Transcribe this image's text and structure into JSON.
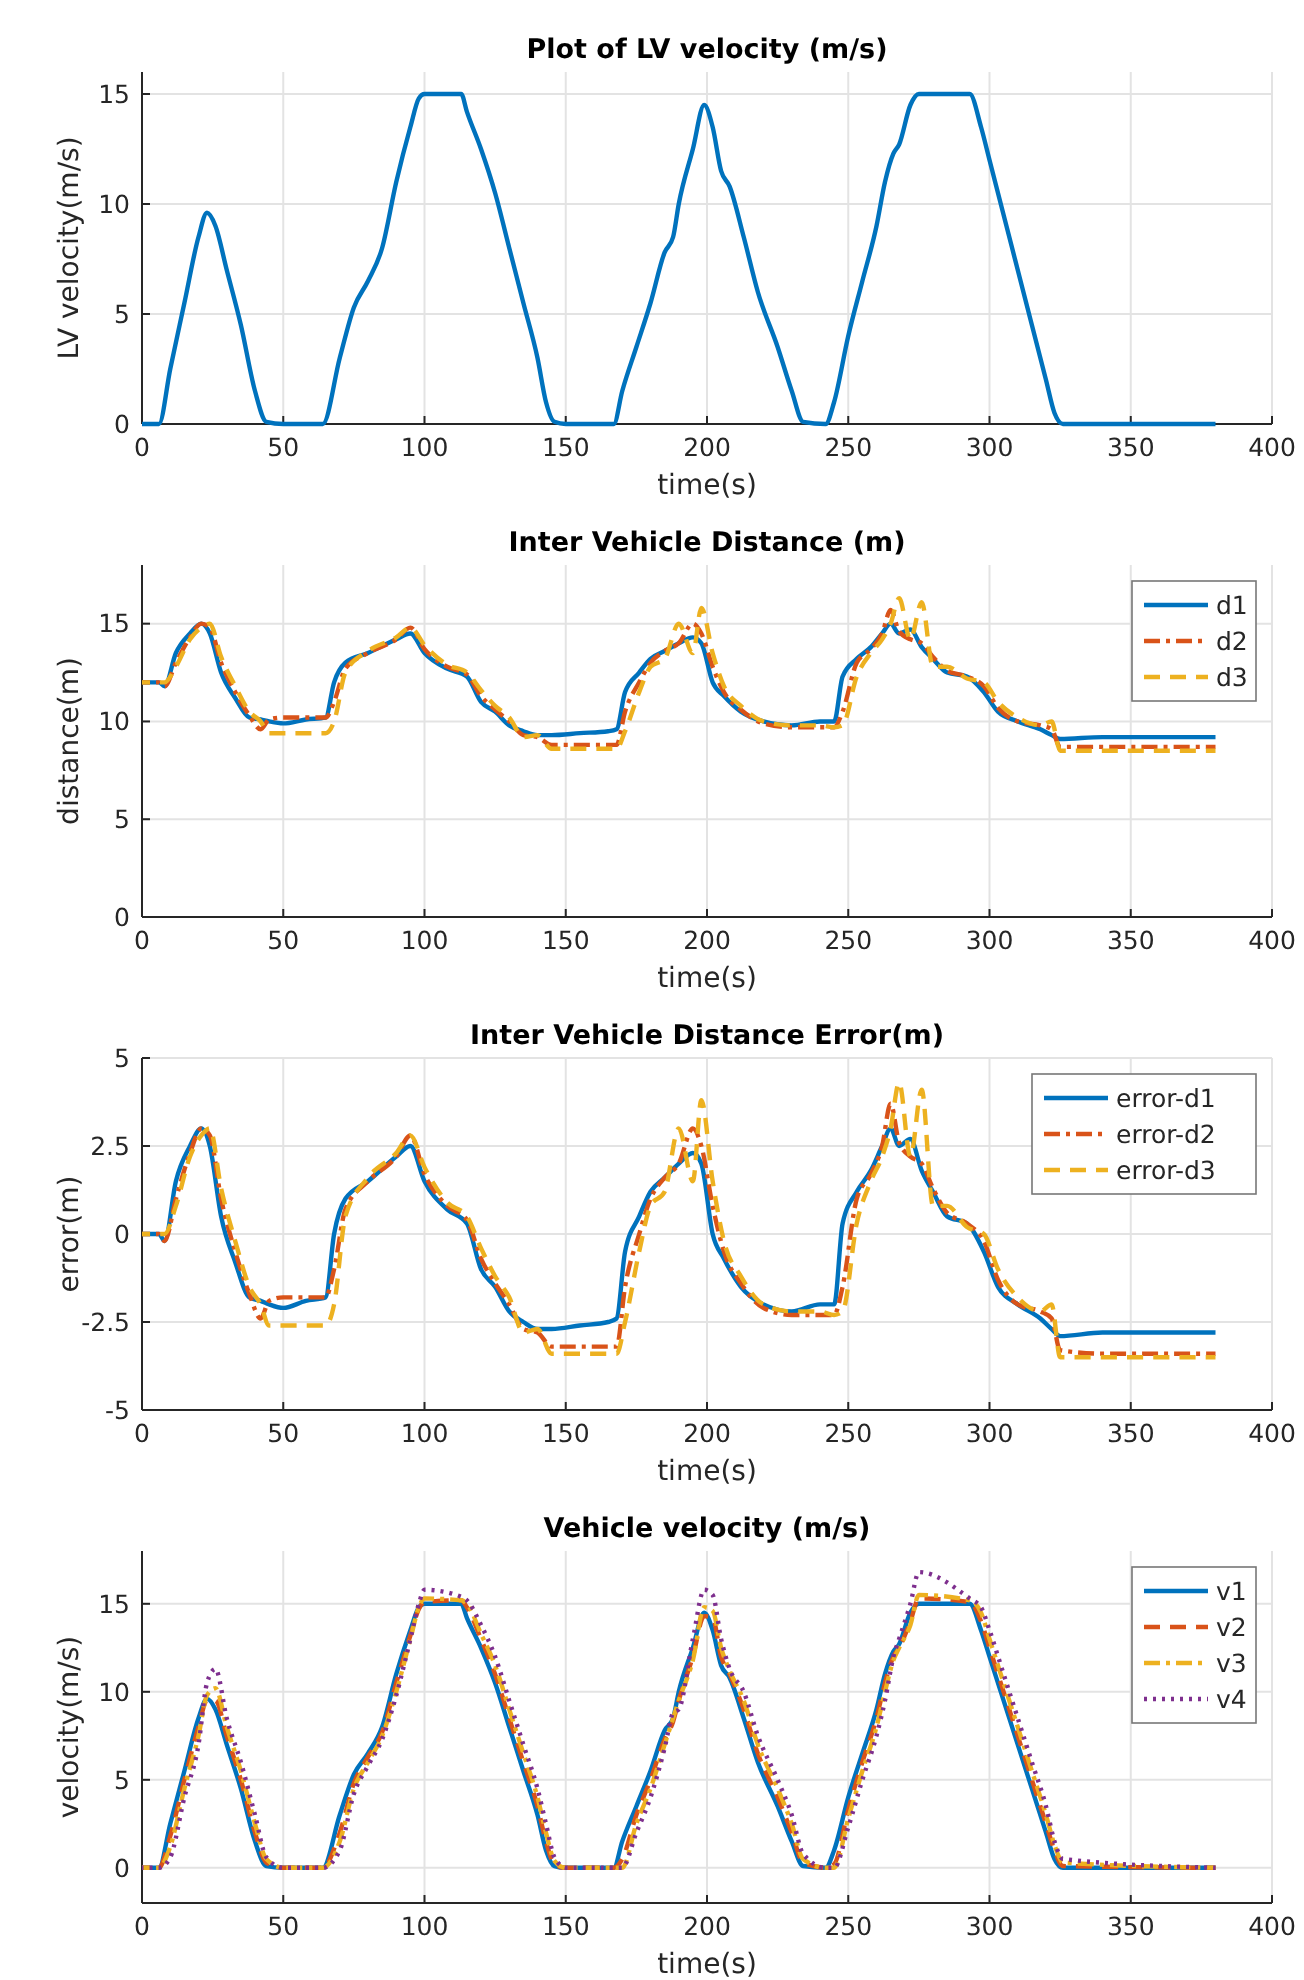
{
  "chart_data": [
    {
      "type": "line",
      "title": "Plot of LV velocity (m/s)",
      "xlabel": "time(s)",
      "ylabel": "LV velocity(m/s)",
      "xlim": [
        0,
        400
      ],
      "xticks": [
        0,
        50,
        100,
        150,
        200,
        250,
        300,
        350,
        400
      ],
      "ylim": [
        0,
        16
      ],
      "yticks": [
        0,
        5,
        10,
        15
      ],
      "grid": true,
      "legend": false,
      "x": [
        0,
        6,
        10,
        15,
        20,
        23,
        26,
        30,
        35,
        40,
        44,
        50,
        57,
        64,
        70,
        75,
        80,
        85,
        90,
        95,
        98,
        100,
        113,
        115,
        120,
        125,
        130,
        135,
        140,
        143,
        146,
        150,
        167,
        170,
        175,
        180,
        185,
        188,
        190,
        195,
        199,
        202,
        205,
        208,
        213,
        218,
        225,
        230,
        234,
        242,
        245,
        250,
        255,
        260,
        263,
        266,
        268,
        272,
        275,
        293,
        297,
        300,
        305,
        310,
        315,
        320,
        323,
        326,
        380
      ],
      "series": [
        {
          "color": "#0072bd",
          "line_style": "solid",
          "values": [
            0,
            0,
            2.5,
            5.5,
            8.5,
            9.6,
            9,
            7,
            4.5,
            1.5,
            0.1,
            0,
            0,
            0,
            3,
            5.3,
            6.5,
            8,
            11,
            13.5,
            14.8,
            15,
            15,
            14.2,
            12.5,
            10.5,
            8,
            5.5,
            3,
            1,
            0.1,
            0,
            0,
            1.5,
            3.5,
            5.5,
            7.8,
            8.5,
            10,
            12.5,
            14.5,
            13.5,
            11.5,
            10.8,
            8.5,
            6,
            3.5,
            1.5,
            0.1,
            0,
            1,
            4,
            6.5,
            9,
            11,
            12.3,
            12.7,
            14.5,
            15,
            15,
            13.5,
            12,
            9.5,
            7,
            4.5,
            2,
            0.5,
            0,
            0
          ]
        }
      ]
    },
    {
      "type": "line",
      "title": "Inter Vehicle Distance (m)",
      "xlabel": "time(s)",
      "ylabel": "distance(m)",
      "xlim": [
        0,
        400
      ],
      "xticks": [
        0,
        50,
        100,
        150,
        200,
        250,
        300,
        350,
        400
      ],
      "ylim": [
        0,
        18
      ],
      "yticks": [
        0,
        5,
        10,
        15
      ],
      "grid": true,
      "legend": "top right",
      "x": [
        0,
        6,
        8,
        12,
        17,
        21,
        24,
        28,
        33,
        38,
        42,
        45,
        50,
        58,
        65,
        68,
        72,
        80,
        90,
        95,
        100,
        108,
        115,
        120,
        125,
        130,
        135,
        140,
        145,
        155,
        165,
        168,
        171,
        176,
        180,
        185,
        190,
        195,
        198,
        202,
        206,
        212,
        220,
        230,
        240,
        245,
        248,
        253,
        258,
        262,
        265,
        268,
        272,
        276,
        280,
        285,
        292,
        298,
        303,
        310,
        318,
        322,
        325,
        340,
        380
      ],
      "series": [
        {
          "name": "d1",
          "color": "#0072bd",
          "line_style": "solid",
          "values": [
            12,
            12,
            11.8,
            13.5,
            14.5,
            15,
            14.5,
            12.5,
            11.2,
            10.2,
            10.1,
            10,
            9.9,
            10.1,
            10.2,
            12,
            13,
            13.5,
            14.2,
            14.5,
            13.5,
            12.7,
            12.3,
            11,
            10.5,
            9.8,
            9.5,
            9.3,
            9.3,
            9.4,
            9.5,
            9.6,
            11.5,
            12.5,
            13.2,
            13.6,
            14,
            14.3,
            14,
            12,
            11.3,
            10.5,
            10,
            9.8,
            10,
            10,
            12.3,
            13.2,
            13.8,
            14.5,
            15,
            14.5,
            14.7,
            13.8,
            13.2,
            12.5,
            12.3,
            11.5,
            10.5,
            10,
            9.6,
            9.3,
            9.1,
            9.2,
            9.2
          ]
        },
        {
          "name": "d2",
          "color": "#d95319",
          "line_style": "dashdot",
          "values": [
            12,
            12,
            11.8,
            13,
            14.3,
            15,
            14.8,
            13,
            11.5,
            10.3,
            9.6,
            10.1,
            10.2,
            10.2,
            10.2,
            11,
            12.7,
            13.5,
            14.2,
            14.8,
            13.7,
            12.8,
            12.4,
            11.3,
            10.6,
            10,
            9.3,
            9.2,
            8.8,
            8.8,
            8.8,
            8.8,
            10.5,
            12,
            13,
            13.6,
            14,
            15,
            14.5,
            12.8,
            11.5,
            10.6,
            9.9,
            9.7,
            9.7,
            9.7,
            10.5,
            13,
            13.7,
            14.5,
            15.7,
            14.6,
            14.2,
            14,
            13.3,
            12.6,
            12.3,
            11.8,
            10.7,
            10,
            9.8,
            9.6,
            8.7,
            8.7,
            8.7
          ]
        },
        {
          "name": "d3",
          "color": "#edb120",
          "line_style": "dashed",
          "values": [
            12,
            12,
            12,
            12.8,
            14.2,
            14.8,
            15,
            13.3,
            11.8,
            10.5,
            10,
            9.4,
            9.4,
            9.4,
            9.4,
            10,
            12.5,
            13.6,
            14.3,
            14.8,
            13.9,
            12.9,
            12.5,
            11.6,
            10.8,
            10.2,
            9.2,
            9.3,
            8.6,
            8.6,
            8.6,
            8.6,
            9.5,
            11.5,
            12.8,
            13.2,
            15,
            13.5,
            15.8,
            13.5,
            11.8,
            10.8,
            10,
            9.8,
            9.8,
            9.7,
            9.8,
            12.3,
            13.5,
            14.2,
            15,
            16.3,
            14.2,
            16.1,
            12.8,
            12.8,
            12.2,
            12,
            11,
            10.2,
            9.8,
            10,
            8.5,
            8.5,
            8.5
          ]
        }
      ]
    },
    {
      "type": "line",
      "title": "Inter Vehicle Distance Error(m)",
      "xlabel": "time(s)",
      "ylabel": "error(m)",
      "xlim": [
        0,
        400
      ],
      "xticks": [
        0,
        50,
        100,
        150,
        200,
        250,
        300,
        350,
        400
      ],
      "ylim": [
        -5,
        5
      ],
      "yticks": [
        -5,
        -2.5,
        0,
        2.5,
        5
      ],
      "grid": true,
      "legend": "top right",
      "x": [
        0,
        6,
        8,
        12,
        17,
        21,
        24,
        28,
        33,
        38,
        42,
        45,
        50,
        58,
        65,
        68,
        72,
        80,
        90,
        95,
        100,
        108,
        115,
        120,
        125,
        130,
        135,
        140,
        145,
        155,
        165,
        168,
        171,
        176,
        180,
        185,
        190,
        195,
        198,
        202,
        206,
        212,
        220,
        230,
        240,
        245,
        248,
        253,
        258,
        262,
        265,
        268,
        272,
        276,
        280,
        285,
        292,
        298,
        303,
        310,
        318,
        322,
        325,
        340,
        380
      ],
      "series": [
        {
          "name": "error-d1",
          "color": "#0072bd",
          "line_style": "solid",
          "values": [
            0,
            0,
            -0.2,
            1.5,
            2.5,
            3,
            2.5,
            0.5,
            -0.8,
            -1.8,
            -1.9,
            -2,
            -2.1,
            -1.9,
            -1.8,
            0,
            1,
            1.5,
            2.2,
            2.5,
            1.5,
            0.7,
            0.3,
            -1,
            -1.5,
            -2.2,
            -2.5,
            -2.7,
            -2.7,
            -2.6,
            -2.5,
            -2.4,
            -0.5,
            0.5,
            1.2,
            1.6,
            2,
            2.3,
            2,
            0,
            -0.7,
            -1.5,
            -2,
            -2.2,
            -2,
            -2,
            0.3,
            1.2,
            1.8,
            2.5,
            3,
            2.5,
            2.7,
            1.8,
            1.2,
            0.5,
            0.3,
            -0.5,
            -1.5,
            -2,
            -2.4,
            -2.7,
            -2.9,
            -2.8,
            -2.8
          ]
        },
        {
          "name": "error-d2",
          "color": "#d95319",
          "line_style": "dashdot",
          "values": [
            0,
            0,
            -0.2,
            1,
            2.3,
            3,
            2.8,
            1,
            -0.5,
            -1.7,
            -2.4,
            -1.9,
            -1.8,
            -1.8,
            -1.8,
            -1,
            0.7,
            1.5,
            2.2,
            2.8,
            1.7,
            0.8,
            0.4,
            -0.7,
            -1.4,
            -2,
            -2.7,
            -2.8,
            -3.2,
            -3.2,
            -3.2,
            -3.2,
            -1.5,
            0,
            1,
            1.6,
            2,
            3,
            2.5,
            0.8,
            -0.5,
            -1.4,
            -2.1,
            -2.3,
            -2.3,
            -2.3,
            -1.5,
            1,
            1.7,
            2.5,
            3.7,
            2.6,
            2.2,
            2,
            1.3,
            0.6,
            0.3,
            -0.2,
            -1.3,
            -2,
            -2.2,
            -2.4,
            -3.3,
            -3.4,
            -3.4
          ]
        },
        {
          "name": "error-d3",
          "color": "#edb120",
          "line_style": "dashed",
          "values": [
            0,
            0,
            0,
            0.8,
            2.2,
            2.8,
            3,
            1.3,
            -0.2,
            -1.5,
            -2,
            -2.6,
            -2.6,
            -2.6,
            -2.6,
            -2,
            0.5,
            1.6,
            2.3,
            2.8,
            1.9,
            0.9,
            0.5,
            -0.4,
            -1.2,
            -1.8,
            -2.8,
            -2.7,
            -3.4,
            -3.4,
            -3.4,
            -3.4,
            -2.5,
            -0.5,
            0.8,
            1.2,
            3,
            1.5,
            3.8,
            1.5,
            -0.2,
            -1.2,
            -2,
            -2.2,
            -2.2,
            -2.3,
            -2.2,
            0.3,
            1.5,
            2.2,
            3,
            4.3,
            2.2,
            4.1,
            0.8,
            0.8,
            0.2,
            0,
            -1,
            -1.8,
            -2.2,
            -2,
            -3.5,
            -3.5,
            -3.5
          ]
        }
      ]
    },
    {
      "type": "line",
      "title": "Vehicle velocity (m/s)",
      "xlabel": "time(s)",
      "ylabel": "velocity(m/s)",
      "xlim": [
        0,
        400
      ],
      "xticks": [
        0,
        50,
        100,
        150,
        200,
        250,
        300,
        350,
        400
      ],
      "ylim": [
        -2,
        18
      ],
      "yticks": [
        0,
        5,
        10,
        15
      ],
      "grid": true,
      "legend": "top right",
      "x": [
        0,
        6,
        10,
        15,
        20,
        23,
        26,
        30,
        35,
        40,
        44,
        50,
        57,
        64,
        70,
        75,
        80,
        85,
        90,
        95,
        98,
        100,
        113,
        115,
        120,
        125,
        130,
        135,
        140,
        143,
        146,
        150,
        167,
        170,
        175,
        180,
        185,
        188,
        190,
        195,
        199,
        202,
        205,
        208,
        213,
        218,
        225,
        230,
        234,
        242,
        245,
        250,
        255,
        260,
        263,
        266,
        268,
        272,
        275,
        293,
        297,
        300,
        305,
        310,
        315,
        320,
        323,
        326,
        380
      ],
      "series": [
        {
          "name": "v1",
          "color": "#0072bd",
          "line_style": "solid",
          "values": [
            0,
            0,
            2.5,
            5.5,
            8.5,
            9.6,
            9,
            7,
            4.5,
            1.5,
            0.1,
            0,
            0,
            0,
            3,
            5.3,
            6.5,
            8,
            11,
            13.5,
            14.8,
            15,
            15,
            14.2,
            12.5,
            10.5,
            8,
            5.5,
            3,
            1,
            0.1,
            0,
            0,
            1.5,
            3.5,
            5.5,
            7.8,
            8.5,
            10,
            12.5,
            14.5,
            13.5,
            11.5,
            10.8,
            8.5,
            6,
            3.5,
            1.5,
            0.1,
            0,
            1,
            4,
            6.5,
            9,
            11,
            12.3,
            12.7,
            14.5,
            15,
            15,
            13.5,
            12,
            9.5,
            7,
            4.5,
            2,
            0.5,
            0,
            0
          ]
        },
        {
          "name": "v2",
          "color": "#d95319",
          "line_style": "dashed",
          "values": [
            0,
            0,
            1.8,
            5,
            8,
            9.5,
            9.5,
            7.5,
            5,
            2,
            0.3,
            0,
            0,
            0,
            2,
            4.8,
            6.3,
            7.7,
            10.5,
            13.2,
            14.7,
            15.1,
            15.2,
            14.8,
            13,
            11,
            8.5,
            6,
            3.5,
            1.5,
            0.2,
            0,
            0,
            0.5,
            3,
            5,
            7.3,
            8.3,
            9.5,
            12,
            14.3,
            14.2,
            12,
            11,
            9,
            6.5,
            4,
            2,
            0.3,
            0,
            0.2,
            3.3,
            6,
            8.5,
            10.5,
            12,
            12.5,
            14,
            15.3,
            15.1,
            14,
            12.5,
            10,
            7.5,
            5,
            2.5,
            1,
            0.1,
            0
          ]
        },
        {
          "name": "v3",
          "color": "#edb120",
          "line_style": "dashdot",
          "values": [
            0,
            0,
            1.2,
            4.5,
            7.5,
            9.8,
            10.2,
            8,
            5.5,
            2.5,
            0.5,
            0,
            0,
            0,
            1.5,
            4.5,
            6,
            7.5,
            10,
            13,
            14.8,
            15.3,
            15.2,
            15,
            13.3,
            11.5,
            9,
            6.5,
            4,
            2,
            0.4,
            0,
            0,
            0,
            2.5,
            4.5,
            7,
            8.5,
            9.5,
            11.8,
            14.8,
            14.6,
            12.5,
            11.2,
            9.5,
            7,
            4.5,
            2.5,
            0.5,
            0,
            0,
            2.8,
            5.5,
            8,
            10,
            11.8,
            12.5,
            13.8,
            15.5,
            15.2,
            14.5,
            13,
            10.5,
            8,
            5.5,
            3,
            1.3,
            0.3,
            0
          ]
        },
        {
          "name": "v4",
          "color": "#7e2f8e",
          "line_style": "dotted",
          "values": [
            0,
            0,
            0.6,
            4,
            7,
            10.5,
            11.3,
            8.5,
            6,
            3,
            0.6,
            0,
            0,
            0,
            1,
            4.2,
            5.8,
            7.3,
            9.8,
            13,
            15,
            15.8,
            15.4,
            15.2,
            13.8,
            12,
            9.5,
            7,
            4.5,
            2.5,
            0.6,
            0,
            0,
            0,
            2,
            4,
            6.8,
            8.8,
            9,
            13,
            15.8,
            15.5,
            13,
            11.3,
            10,
            7.5,
            5,
            3,
            0.8,
            0,
            0,
            2.3,
            5,
            7.5,
            9.5,
            12,
            13,
            15,
            16.8,
            15.3,
            14.8,
            13.5,
            11,
            8.5,
            6,
            3.5,
            1.5,
            0.5,
            0
          ]
        }
      ]
    }
  ]
}
